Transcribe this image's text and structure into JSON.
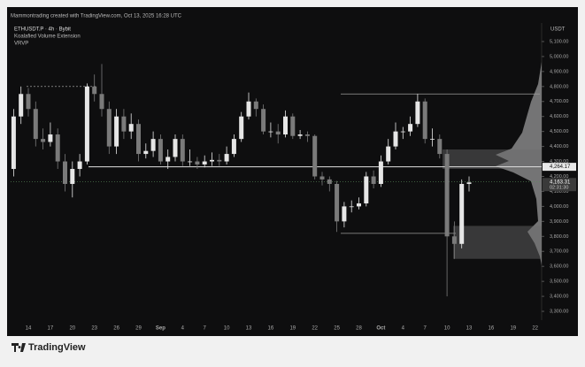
{
  "chart_data": {
    "type": "candlestick",
    "caption": "Mammontrading created with TradingView.com, Oct 13, 2025 16:28 UTC",
    "title": "ETHUSDT.P · 4h · Bybit",
    "indicators": [
      "Koalafied Volume Extension",
      "VRVP"
    ],
    "axis_unit": "USDT",
    "brand": "TradingView",
    "categories": [
      null,
      null,
      "14",
      null,
      null,
      "17",
      null,
      null,
      "20",
      null,
      null,
      "23",
      null,
      null,
      "26",
      null,
      null,
      "29",
      null,
      null,
      "Sep",
      null,
      null,
      "4",
      null,
      null,
      "7",
      null,
      null,
      "10",
      null,
      null,
      "13",
      null,
      null,
      "16",
      null,
      null,
      "19",
      null,
      null,
      "22",
      null,
      null,
      "25",
      null,
      null,
      "28",
      null,
      null,
      "Oct",
      null,
      null,
      "4",
      null,
      null,
      "7",
      null,
      null,
      "10",
      null,
      null,
      "13",
      null,
      null,
      "16",
      null,
      null,
      "19",
      null,
      null,
      "22"
    ],
    "open": [
      4250,
      4600,
      4750,
      4650,
      4450,
      4430,
      4480,
      4300,
      4150,
      4250,
      4300,
      4800,
      4750,
      4650,
      4400,
      4600,
      4500,
      4550,
      4350,
      4370,
      4450,
      4300,
      4330,
      4450,
      4300,
      4300,
      4280,
      4300,
      4310,
      4300,
      4350,
      4450,
      4600,
      4700,
      4650,
      4500,
      4500,
      4480,
      4600,
      4470,
      4480,
      4470,
      4200,
      4180,
      4150,
      3900,
      4000,
      4000,
      4020,
      4200,
      4150,
      4300,
      4400,
      4500,
      4500,
      4550,
      4700,
      4450,
      4450,
      4350,
      3800,
      3750,
      4150,
      null,
      null,
      null,
      null,
      null,
      null,
      null,
      null,
      null
    ],
    "high": [
      4650,
      4800,
      4790,
      4700,
      4520,
      4560,
      4520,
      4350,
      4300,
      4350,
      4820,
      4880,
      4950,
      4700,
      4650,
      4650,
      4620,
      4580,
      4420,
      4500,
      4480,
      4380,
      4480,
      4480,
      4380,
      4330,
      4340,
      4360,
      4350,
      4400,
      4480,
      4630,
      4760,
      4720,
      4680,
      4560,
      4550,
      4640,
      4620,
      4510,
      4500,
      4480,
      4230,
      4200,
      4170,
      4030,
      4040,
      4060,
      4230,
      4240,
      4340,
      4450,
      4560,
      4530,
      4600,
      4750,
      4720,
      4520,
      4480,
      4380,
      3900,
      4180,
      4200,
      null,
      null,
      null,
      null,
      null,
      null,
      null,
      null,
      null
    ],
    "low": [
      4200,
      4550,
      4600,
      4400,
      4380,
      4400,
      4250,
      4100,
      4060,
      4200,
      4280,
      4700,
      4600,
      4350,
      4350,
      4450,
      4450,
      4300,
      4320,
      4330,
      4280,
      4250,
      4300,
      4270,
      4270,
      4250,
      4260,
      4270,
      4270,
      4280,
      4330,
      4430,
      4580,
      4600,
      4480,
      4460,
      4420,
      4460,
      4450,
      4450,
      4430,
      4180,
      4140,
      4100,
      3830,
      3860,
      3960,
      3980,
      4000,
      4120,
      4130,
      4280,
      4380,
      4450,
      4470,
      4530,
      4420,
      4400,
      4320,
      3400,
      3650,
      3720,
      4100,
      null,
      null,
      null,
      null,
      null,
      null,
      null,
      null,
      null
    ],
    "close": [
      4600,
      4750,
      4650,
      4450,
      4430,
      4480,
      4300,
      4150,
      4250,
      4300,
      4800,
      4750,
      4650,
      4400,
      4600,
      4500,
      4550,
      4350,
      4370,
      4450,
      4300,
      4330,
      4450,
      4300,
      4300,
      4280,
      4300,
      4310,
      4300,
      4350,
      4450,
      4600,
      4700,
      4650,
      4500,
      4500,
      4480,
      4600,
      4470,
      4480,
      4470,
      4200,
      4180,
      4150,
      3900,
      4000,
      4000,
      4020,
      4200,
      4150,
      4300,
      4400,
      4500,
      4500,
      4550,
      4700,
      4450,
      4450,
      4350,
      3800,
      3750,
      4150,
      4160,
      null,
      null,
      null,
      null,
      null,
      null,
      null,
      null,
      null
    ],
    "up_color": "#e6e6e6",
    "down_color": "#7a7a7a",
    "ylim": [
      3200,
      5200
    ],
    "yticks": [
      {
        "value": 3300,
        "label": "3,300.00"
      },
      {
        "value": 3400,
        "label": "3,400.00"
      },
      {
        "value": 3500,
        "label": "3,500.00"
      },
      {
        "value": 3600,
        "label": "3,600.00"
      },
      {
        "value": 3700,
        "label": "3,700.00"
      },
      {
        "value": 3800,
        "label": "3,800.00"
      },
      {
        "value": 3900,
        "label": "3,900.00"
      },
      {
        "value": 4000,
        "label": "4,000.00"
      },
      {
        "value": 4100,
        "label": "4,100.00"
      },
      {
        "value": 4200,
        "label": "4,200.00"
      },
      {
        "value": 4300,
        "label": "4,300.00"
      },
      {
        "value": 4400,
        "label": "4,400.00"
      },
      {
        "value": 4500,
        "label": "4,500.00"
      },
      {
        "value": 4600,
        "label": "4,600.00"
      },
      {
        "value": 4700,
        "label": "4,700.00"
      },
      {
        "value": 4800,
        "label": "4,800.00"
      },
      {
        "value": 4900,
        "label": "4,900.00"
      },
      {
        "value": 5000,
        "label": "5,000.00"
      },
      {
        "value": 5100,
        "label": "5,100.00"
      }
    ],
    "grid": false,
    "price_line": {
      "value": 4264.17,
      "label": "4,264.17"
    },
    "last_price": {
      "value": 4163.31,
      "label": "4,163.31"
    },
    "countdown": "02:31:30",
    "levels": [
      4750,
      3820
    ],
    "target_level": 4800,
    "zones": [
      [
        4380,
        4250
      ],
      [
        3870,
        3650
      ]
    ]
  }
}
